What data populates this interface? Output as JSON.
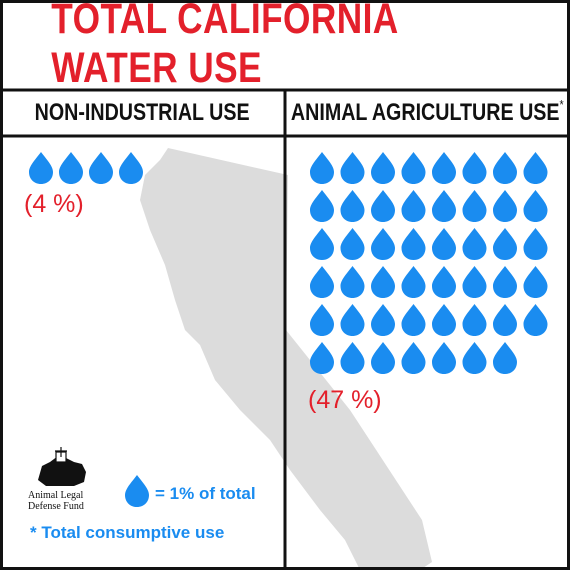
{
  "title": "TOTAL CALIFORNIA WATER USE",
  "columns": [
    {
      "heading": "NON-INDUSTRIAL USE",
      "heading_mark": "",
      "percent_label": "(4 %)",
      "drop_count": 4
    },
    {
      "heading": "ANIMAL AGRICULTURE USE",
      "heading_mark": "*",
      "percent_label": "(47 %)",
      "drop_count": 47
    }
  ],
  "legend": {
    "icon": "water-drop-icon",
    "label": "= 1% of total"
  },
  "footnote": "* Total consumptive use",
  "logo": {
    "line1": "Animal Legal",
    "line2": "Defense Fund"
  },
  "colors": {
    "title": "#e3202b",
    "drop": "#1a8cf0",
    "percent": "#e3202b",
    "map": "#dcdcdc",
    "border": "#111111"
  }
}
